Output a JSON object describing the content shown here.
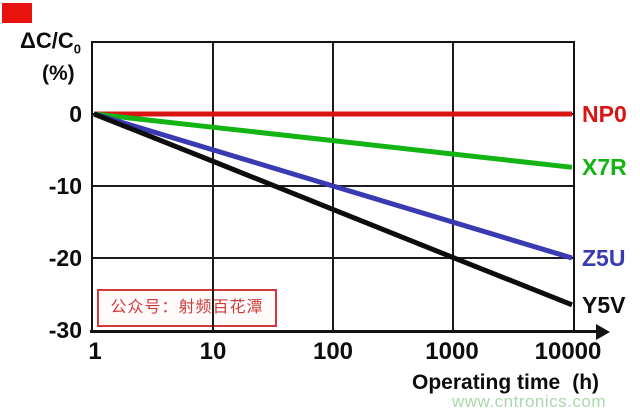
{
  "chart_data": {
    "type": "line",
    "title": "",
    "xlabel": "Operating time (h)",
    "xlabel_main": "Operating time",
    "xlabel_unit": "(h)",
    "ylabel": "ΔC/C0 (%)",
    "ylabel_main": "ΔC/C",
    "ylabel_sub": "0",
    "ylabel_unit": "(%)",
    "x_scale": "log",
    "grid": true,
    "xlim": [
      1,
      10000
    ],
    "ylim": [
      -30,
      10
    ],
    "x": [
      1,
      10,
      100,
      1000,
      10000
    ],
    "xtick_labels": [
      "1",
      "10",
      "100",
      "1000",
      "10000"
    ],
    "ytick_values": [
      0,
      -10,
      -20,
      -30
    ],
    "ytick_labels": [
      "0",
      "-10",
      "-20",
      "-30"
    ],
    "series": [
      {
        "name": "NP0",
        "color": "#d81414",
        "values": [
          0,
          0,
          0,
          0,
          0
        ]
      },
      {
        "name": "X7R",
        "color": "#13b413",
        "values": [
          0,
          -1.85,
          -3.7,
          -5.55,
          -7.4
        ]
      },
      {
        "name": "Z5U",
        "color": "#3a3ab2",
        "values": [
          0,
          -5,
          -10,
          -15,
          -20
        ]
      },
      {
        "name": "Y5V",
        "color": "#0d0d0d",
        "values": [
          0,
          -6.6,
          -13.25,
          -19.9,
          -26.5
        ]
      }
    ]
  },
  "overlay": {
    "wechat_box_text": "公众号：射频百花潭",
    "wechat_box_color": "#cf3b3b"
  },
  "watermark": {
    "text": "www.cntronics.com",
    "color": "#a8d5a8"
  },
  "decor": {
    "corner_marker_color": "#e8130e"
  }
}
